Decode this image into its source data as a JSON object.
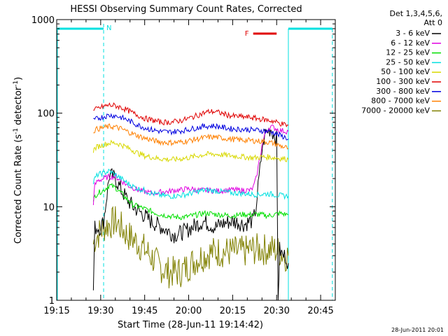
{
  "chart_data": {
    "type": "line",
    "title": "HESSI Observing Summary Count Rates, Corrected",
    "xlabel": "Start Time (28-Jun-11 19:14:42)",
    "ylabel_prefix": "Corrected Count Rate (s",
    "ylabel_sup1": "-1",
    "ylabel_mid": " detector",
    "ylabel_sup2": "-1",
    "ylabel_suffix": ")",
    "yscale": "log",
    "ylim": [
      1,
      1000
    ],
    "xlim_minutes": [
      0,
      95
    ],
    "x_tick_labels": [
      "19:15",
      "19:30",
      "19:45",
      "20:00",
      "20:15",
      "20:30",
      "20:45"
    ],
    "x_tick_minutes": [
      0,
      15,
      30,
      45,
      60,
      75,
      90
    ],
    "y_tick_labels": [
      "1",
      "10",
      "100",
      "1000"
    ],
    "y_tick_values": [
      1,
      10,
      100,
      1000
    ],
    "legend_title_1": "Det 1,3,4,5,6,",
    "legend_title_2": "Att 0",
    "timestamp": "28-Jun-2011 20:01",
    "night_label": "N",
    "flare_label": "F",
    "night_intervals": [
      [
        0,
        16
      ],
      [
        79,
        94
      ]
    ],
    "flare_interval": [
      67,
      75
    ],
    "night_boundaries": [
      16,
      79,
      94
    ],
    "series": [
      {
        "name": "3 - 6 keV",
        "color": "#000000",
        "x": [
          12.5,
          13,
          14,
          15,
          16,
          18,
          20,
          22,
          24,
          26,
          28,
          30,
          32,
          34,
          36,
          38,
          40,
          42,
          44,
          46,
          48,
          50,
          52,
          54,
          56,
          58,
          60,
          62,
          64,
          66,
          67,
          68,
          69,
          70,
          71,
          72,
          73,
          74,
          75,
          75.5,
          76,
          77,
          78,
          79
        ],
        "y": [
          1.3,
          6,
          6,
          6,
          7,
          22,
          20,
          15,
          12,
          10,
          9,
          8,
          7,
          6.5,
          6,
          5.5,
          5,
          5.2,
          5.5,
          6,
          6.5,
          7,
          6.5,
          6,
          6.5,
          6.8,
          7,
          6.8,
          6.5,
          7,
          7,
          10,
          20,
          40,
          60,
          65,
          68,
          60,
          55,
          1,
          3.5,
          3,
          3,
          2.5
        ]
      },
      {
        "name": "6 - 12 keV",
        "color": "#e000e0",
        "x": [
          12.5,
          13,
          14,
          16,
          18,
          20,
          22,
          24,
          26,
          28,
          30,
          32,
          34,
          36,
          38,
          40,
          42,
          44,
          46,
          48,
          50,
          52,
          54,
          56,
          58,
          60,
          62,
          64,
          66,
          67,
          68,
          69,
          70,
          71,
          72,
          73,
          74,
          75,
          76,
          77,
          78,
          79
        ],
        "y": [
          11,
          17,
          19,
          20,
          21,
          21,
          19,
          17,
          16,
          15,
          14.5,
          14,
          14,
          14.5,
          14.5,
          15,
          15,
          15.5,
          15.5,
          15,
          15,
          15,
          14.8,
          14.8,
          15,
          15.2,
          15,
          15,
          15,
          16,
          20,
          30,
          45,
          60,
          68,
          72,
          70,
          68,
          65,
          65,
          64,
          64
        ]
      },
      {
        "name": "12 - 25 keV",
        "color": "#00e000",
        "x": [
          12.5,
          13,
          14,
          16,
          18,
          20,
          22,
          24,
          26,
          28,
          30,
          32,
          34,
          36,
          38,
          40,
          42,
          44,
          46,
          48,
          50,
          52,
          54,
          56,
          58,
          60,
          62,
          64,
          66,
          68,
          70,
          72,
          74,
          76,
          78,
          79
        ],
        "y": [
          11,
          13,
          14,
          15,
          17,
          16,
          14,
          12,
          10.5,
          10,
          9.5,
          9,
          8.5,
          8.2,
          8,
          7.8,
          7.7,
          7.8,
          8,
          8.2,
          8.5,
          8.5,
          8.3,
          8.2,
          8.1,
          8,
          8.2,
          8.3,
          8.2,
          8.3,
          8.2,
          8,
          8.2,
          8.5,
          8.3,
          8.2
        ]
      },
      {
        "name": "25 - 50 keV",
        "color": "#00e0e0",
        "x": [
          12.5,
          13,
          14,
          16,
          18,
          20,
          22,
          24,
          26,
          28,
          30,
          32,
          34,
          36,
          38,
          40,
          42,
          44,
          46,
          48,
          50,
          52,
          54,
          56,
          58,
          60,
          62,
          64,
          66,
          68,
          70,
          72,
          74,
          76,
          78,
          79
        ],
        "y": [
          18,
          20,
          22,
          23,
          24,
          22,
          20,
          18,
          16.5,
          15.5,
          15,
          14,
          13.5,
          13.2,
          13,
          13,
          13.2,
          13.5,
          14,
          14.5,
          15,
          15,
          14.8,
          14.5,
          14.3,
          14,
          14,
          13.8,
          13.7,
          13.5,
          13.6,
          13.8,
          13.5,
          13.2,
          13,
          13
        ]
      },
      {
        "name": "50 - 100 keV",
        "color": "#d8d800",
        "x": [
          12.5,
          13,
          14,
          16,
          18,
          20,
          22,
          24,
          26,
          28,
          30,
          32,
          34,
          36,
          38,
          40,
          42,
          44,
          46,
          48,
          50,
          52,
          54,
          56,
          58,
          60,
          62,
          64,
          66,
          68,
          70,
          72,
          74,
          76,
          78,
          79
        ],
        "y": [
          40,
          42,
          44,
          46,
          48,
          48,
          46,
          43,
          40,
          37,
          35,
          34,
          33,
          32.5,
          32,
          32,
          32.5,
          33,
          34,
          35,
          36,
          36.5,
          36.5,
          36,
          35.5,
          35,
          34.5,
          34,
          33.5,
          33.5,
          34,
          34,
          33.5,
          33,
          32.5,
          32
        ]
      },
      {
        "name": "100 - 300 keV",
        "color": "#e00000",
        "x": [
          12.5,
          13,
          14,
          16,
          18,
          20,
          22,
          24,
          26,
          28,
          30,
          32,
          34,
          36,
          38,
          40,
          42,
          44,
          46,
          48,
          50,
          52,
          54,
          56,
          58,
          60,
          62,
          64,
          66,
          68,
          70,
          72,
          74,
          76,
          78,
          79
        ],
        "y": [
          105,
          108,
          112,
          118,
          122,
          120,
          115,
          108,
          100,
          94,
          88,
          85,
          82,
          80,
          80,
          81,
          83,
          86,
          90,
          95,
          100,
          104,
          104,
          100,
          96,
          93,
          92,
          91,
          90,
          88,
          86,
          84,
          82,
          78,
          75,
          74
        ]
      },
      {
        "name": "300 - 800 keV",
        "color": "#0000e0",
        "x": [
          12.5,
          13,
          14,
          16,
          18,
          20,
          22,
          24,
          26,
          28,
          30,
          32,
          34,
          36,
          38,
          40,
          42,
          44,
          46,
          48,
          50,
          52,
          54,
          56,
          58,
          60,
          62,
          64,
          66,
          68,
          70,
          72,
          74,
          76,
          78,
          79
        ],
        "y": [
          82,
          85,
          88,
          92,
          95,
          94,
          90,
          85,
          79,
          74,
          70,
          67,
          65,
          63.5,
          63,
          63.5,
          64.5,
          66,
          68,
          70,
          72,
          73,
          73,
          71,
          69,
          68,
          67.5,
          67,
          66.5,
          66,
          65,
          64,
          62,
          58,
          55,
          53
        ]
      },
      {
        "name": "800 - 7000 keV",
        "color": "#ff8000",
        "x": [
          12.5,
          13,
          14,
          16,
          18,
          20,
          22,
          24,
          26,
          28,
          30,
          32,
          34,
          36,
          38,
          40,
          42,
          44,
          46,
          48,
          50,
          52,
          54,
          56,
          58,
          60,
          62,
          64,
          66,
          68,
          70,
          72,
          74,
          76,
          78,
          79
        ],
        "y": [
          64,
          66,
          68,
          70,
          72,
          71,
          68,
          64,
          60,
          57,
          54,
          52,
          50,
          49,
          48.5,
          48.5,
          49,
          50,
          51.5,
          53,
          54.5,
          55.5,
          55.5,
          54.5,
          53.5,
          52.5,
          52,
          51.5,
          51,
          50.5,
          50,
          49,
          47.5,
          45,
          43,
          42
        ]
      },
      {
        "name": "7000 - 20000 keV",
        "color": "#808000",
        "x": [
          12.5,
          13,
          14,
          16,
          18,
          20,
          22,
          24,
          26,
          28,
          30,
          32,
          34,
          36,
          38,
          40,
          42,
          44,
          46,
          48,
          50,
          52,
          54,
          56,
          58,
          60,
          62,
          64,
          66,
          68,
          70,
          72,
          74,
          76,
          78,
          79
        ],
        "y": [
          4,
          4.5,
          5,
          6,
          6.5,
          7,
          6,
          5,
          4.5,
          4,
          3.5,
          3,
          2.5,
          2.2,
          2,
          2,
          2,
          2.2,
          2.5,
          2.8,
          3,
          3.2,
          3.3,
          3.3,
          3.3,
          3.3,
          3.3,
          3.3,
          3.5,
          3.5,
          3.5,
          3.5,
          3.5,
          3.3,
          3,
          3
        ]
      }
    ]
  }
}
